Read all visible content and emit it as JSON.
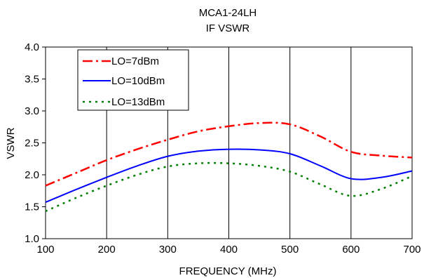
{
  "chart_data": {
    "type": "line",
    "title": "MCA1-24LH",
    "subtitle": "IF VSWR",
    "xlabel": "FREQUENCY (MHz)",
    "ylabel": "VSWR",
    "xlim": [
      100,
      700
    ],
    "ylim": [
      1.0,
      4.0
    ],
    "x_ticks": [
      "100",
      "200",
      "300",
      "400",
      "500",
      "600",
      "700"
    ],
    "y_ticks": [
      "1.0",
      "1.5",
      "2.0",
      "2.5",
      "3.0",
      "3.5",
      "4.0"
    ],
    "grid": "vertical",
    "legend_position": "top-left",
    "series": [
      {
        "name": "LO=7dBm",
        "color": "#ff0000",
        "dash": "dashed",
        "x": [
          100,
          150,
          200,
          250,
          300,
          350,
          400,
          450,
          500,
          550,
          600,
          650,
          700
        ],
        "y": [
          1.83,
          2.03,
          2.23,
          2.4,
          2.55,
          2.68,
          2.76,
          2.81,
          2.79,
          2.6,
          2.36,
          2.3,
          2.27
        ]
      },
      {
        "name": "LO=10dBm",
        "color": "#0000ff",
        "dash": "solid",
        "x": [
          100,
          150,
          200,
          250,
          300,
          350,
          400,
          450,
          500,
          550,
          600,
          650,
          700
        ],
        "y": [
          1.57,
          1.77,
          1.96,
          2.14,
          2.29,
          2.37,
          2.4,
          2.39,
          2.33,
          2.14,
          1.94,
          1.96,
          2.06
        ]
      },
      {
        "name": "LO=13dBm",
        "color": "#008000",
        "dash": "dotted",
        "x": [
          100,
          150,
          200,
          250,
          300,
          350,
          400,
          450,
          500,
          550,
          600,
          650,
          700
        ],
        "y": [
          1.43,
          1.64,
          1.83,
          2.0,
          2.13,
          2.18,
          2.18,
          2.14,
          2.05,
          1.85,
          1.67,
          1.78,
          1.98
        ]
      }
    ]
  }
}
